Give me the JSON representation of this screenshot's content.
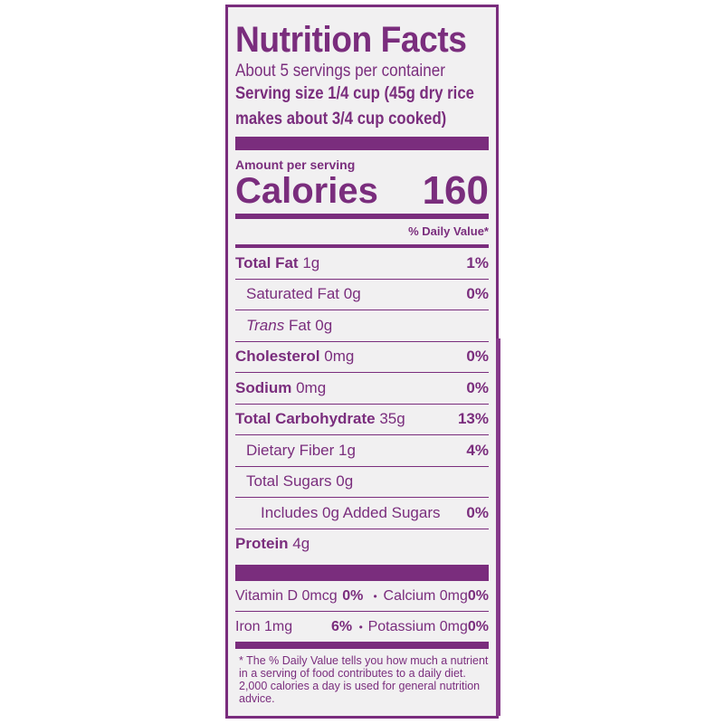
{
  "title": "Nutrition Facts",
  "servings_per_container": "About 5 servings per container",
  "serving_size_line1": "Serving size 1/4 cup (45g dry rice",
  "serving_size_line2": "makes about 3/4 cup cooked)",
  "amount_per_serving": "Amount per serving",
  "calories_label": "Calories",
  "calories_value": "160",
  "daily_value_header": "% Daily Value*",
  "nutrients": [
    {
      "name": "Total Fat",
      "amount": "1g",
      "dv": "1%",
      "bold": true,
      "indent": 0
    },
    {
      "name": "Saturated Fat",
      "amount": "0g",
      "dv": "0%",
      "bold": false,
      "indent": 1
    },
    {
      "name": "Trans",
      "name_rest": "Fat",
      "amount": "0g",
      "dv": "",
      "bold": false,
      "indent": 1
    },
    {
      "name": "Cholesterol",
      "amount": "0mg",
      "dv": "0%",
      "bold": true,
      "indent": 0
    },
    {
      "name": "Sodium",
      "amount": "0mg",
      "dv": "0%",
      "bold": true,
      "indent": 0
    },
    {
      "name": "Total Carbohydrate",
      "amount": "35g",
      "dv": "13%",
      "bold": true,
      "indent": 0
    },
    {
      "name": "Dietary Fiber",
      "amount": "1g",
      "dv": "4%",
      "bold": false,
      "indent": 1
    },
    {
      "name": "Total Sugars",
      "amount": "0g",
      "dv": "",
      "bold": false,
      "indent": 1
    },
    {
      "name": "Includes 0g Added Sugars",
      "amount": "",
      "dv": "0%",
      "bold": false,
      "indent": 2
    },
    {
      "name": "Protein",
      "amount": "4g",
      "dv": "",
      "bold": true,
      "indent": 0
    }
  ],
  "vitamins": [
    {
      "a": "Vitamin D 0mcg",
      "a_dv": "0%",
      "b": "Calcium 0mg",
      "b_dv": "0%"
    },
    {
      "a": "Iron 1mg",
      "a_dv": "6%",
      "b": "Potassium  0mg",
      "b_dv": "0%"
    }
  ],
  "footnote": "* The % Daily Value tells you how much a nutrient in a serving of food contributes to a daily diet. 2,000 calories a day is used for general nutrition advice.",
  "colors": {
    "label_purple": "#7a2d7d"
  }
}
